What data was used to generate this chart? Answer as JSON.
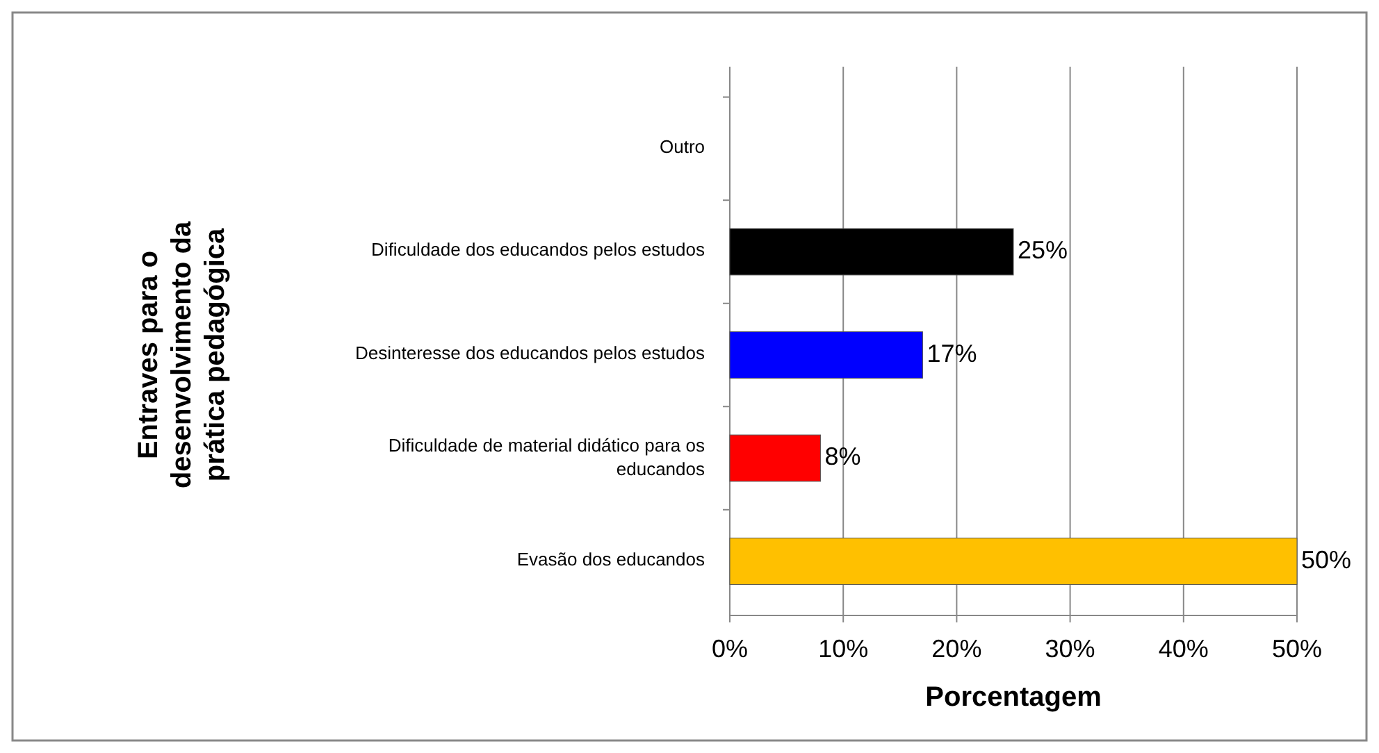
{
  "chart_data": {
    "type": "bar",
    "orientation": "horizontal",
    "xlabel": "Porcentagem",
    "ylabel": "Entraves para o desenvolvimento da prática pedagógica",
    "categories": [
      "Outro",
      "Dificuldade dos educandos pelos estudos",
      "Desinteresse dos educandos pelos estudos",
      "Dificuldade de material didático para os educandos",
      "Evasão dos educandos"
    ],
    "values": [
      null,
      25,
      17,
      8,
      50
    ],
    "colors": [
      null,
      "#000000",
      "#0000ff",
      "#ff0000",
      "#ffc000"
    ],
    "value_labels": [
      null,
      "25%",
      "17%",
      "8%",
      "50%"
    ],
    "xlim": [
      0,
      50
    ],
    "xticks": [
      {
        "value": 0,
        "label": "0%"
      },
      {
        "value": 10,
        "label": "10%"
      },
      {
        "value": 20,
        "label": "20%"
      },
      {
        "value": 30,
        "label": "30%"
      },
      {
        "value": 40,
        "label": "40%"
      },
      {
        "value": 50,
        "label": "50%"
      }
    ],
    "grid": "x"
  }
}
